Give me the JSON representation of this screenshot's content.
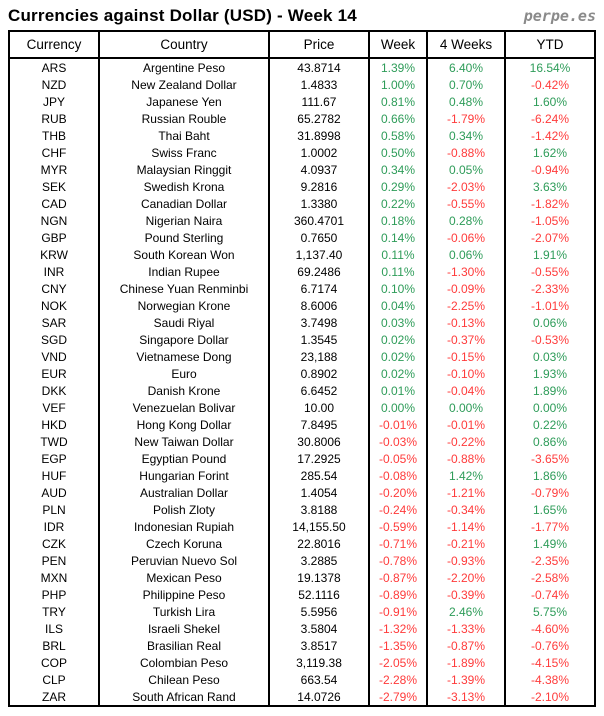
{
  "header": {
    "title": "Currencies against Dollar (USD) - Week 14",
    "logo": "perpe.es"
  },
  "colors": {
    "positive": "#2E9C59",
    "negative": "#FF3B3B",
    "text": "#000000",
    "logo_gray": "#8A8A8A",
    "border": "#000000"
  },
  "table": {
    "columns": [
      {
        "key": "code",
        "label": "Currency"
      },
      {
        "key": "country",
        "label": "Country"
      },
      {
        "key": "price",
        "label": "Price"
      },
      {
        "key": "week",
        "label": "Week"
      },
      {
        "key": "weeks4",
        "label": "4 Weeks"
      },
      {
        "key": "ytd",
        "label": "YTD"
      }
    ],
    "percent_columns": [
      "week",
      "weeks4",
      "ytd"
    ],
    "rows": [
      {
        "code": "ARS",
        "country": "Argentine Peso",
        "price": "43.8714",
        "week": "1.39%",
        "weeks4": "6.40%",
        "ytd": "16.54%"
      },
      {
        "code": "NZD",
        "country": "New Zealand Dollar",
        "price": "1.4833",
        "week": "1.00%",
        "weeks4": "0.70%",
        "ytd": "-0.42%"
      },
      {
        "code": "JPY",
        "country": "Japanese Yen",
        "price": "111.67",
        "week": "0.81%",
        "weeks4": "0.48%",
        "ytd": "1.60%"
      },
      {
        "code": "RUB",
        "country": "Russian Rouble",
        "price": "65.2782",
        "week": "0.66%",
        "weeks4": "-1.79%",
        "ytd": "-6.24%"
      },
      {
        "code": "THB",
        "country": "Thai Baht",
        "price": "31.8998",
        "week": "0.58%",
        "weeks4": "0.34%",
        "ytd": "-1.42%"
      },
      {
        "code": "CHF",
        "country": "Swiss Franc",
        "price": "1.0002",
        "week": "0.50%",
        "weeks4": "-0.88%",
        "ytd": "1.62%"
      },
      {
        "code": "MYR",
        "country": "Malaysian Ringgit",
        "price": "4.0937",
        "week": "0.34%",
        "weeks4": "0.05%",
        "ytd": "-0.94%"
      },
      {
        "code": "SEK",
        "country": "Swedish Krona",
        "price": "9.2816",
        "week": "0.29%",
        "weeks4": "-2.03%",
        "ytd": "3.63%"
      },
      {
        "code": "CAD",
        "country": "Canadian Dollar",
        "price": "1.3380",
        "week": "0.22%",
        "weeks4": "-0.55%",
        "ytd": "-1.82%"
      },
      {
        "code": "NGN",
        "country": "Nigerian Naira",
        "price": "360.4701",
        "week": "0.18%",
        "weeks4": "0.28%",
        "ytd": "-1.05%"
      },
      {
        "code": "GBP",
        "country": "Pound Sterling",
        "price": "0.7650",
        "week": "0.14%",
        "weeks4": "-0.06%",
        "ytd": "-2.07%"
      },
      {
        "code": "KRW",
        "country": "South Korean Won",
        "price": "1,137.40",
        "week": "0.11%",
        "weeks4": "0.06%",
        "ytd": "1.91%"
      },
      {
        "code": "INR",
        "country": "Indian Rupee",
        "price": "69.2486",
        "week": "0.11%",
        "weeks4": "-1.30%",
        "ytd": "-0.55%"
      },
      {
        "code": "CNY",
        "country": "Chinese Yuan Renminbi",
        "price": "6.7174",
        "week": "0.10%",
        "weeks4": "-0.09%",
        "ytd": "-2.33%"
      },
      {
        "code": "NOK",
        "country": "Norwegian Krone",
        "price": "8.6006",
        "week": "0.04%",
        "weeks4": "-2.25%",
        "ytd": "-1.01%"
      },
      {
        "code": "SAR",
        "country": "Saudi Riyal",
        "price": "3.7498",
        "week": "0.03%",
        "weeks4": "-0.13%",
        "ytd": "0.06%"
      },
      {
        "code": "SGD",
        "country": "Singapore Dollar",
        "price": "1.3545",
        "week": "0.02%",
        "weeks4": "-0.37%",
        "ytd": "-0.53%"
      },
      {
        "code": "VND",
        "country": "Vietnamese Dong",
        "price": "23,188",
        "week": "0.02%",
        "weeks4": "-0.15%",
        "ytd": "0.03%"
      },
      {
        "code": "EUR",
        "country": "Euro",
        "price": "0.8902",
        "week": "0.02%",
        "weeks4": "-0.10%",
        "ytd": "1.93%"
      },
      {
        "code": "DKK",
        "country": "Danish Krone",
        "price": "6.6452",
        "week": "0.01%",
        "weeks4": "-0.04%",
        "ytd": "1.89%"
      },
      {
        "code": "VEF",
        "country": "Venezuelan Bolivar",
        "price": "10.00",
        "week": "0.00%",
        "weeks4": "0.00%",
        "ytd": "0.00%"
      },
      {
        "code": "HKD",
        "country": "Hong Kong Dollar",
        "price": "7.8495",
        "week": "-0.01%",
        "weeks4": "-0.01%",
        "ytd": "0.22%"
      },
      {
        "code": "TWD",
        "country": "New Taiwan Dollar",
        "price": "30.8006",
        "week": "-0.03%",
        "weeks4": "-0.22%",
        "ytd": "0.86%"
      },
      {
        "code": "EGP",
        "country": "Egyptian Pound",
        "price": "17.2925",
        "week": "-0.05%",
        "weeks4": "-0.88%",
        "ytd": "-3.65%"
      },
      {
        "code": "HUF",
        "country": "Hungarian Forint",
        "price": "285.54",
        "week": "-0.08%",
        "weeks4": "1.42%",
        "ytd": "1.86%"
      },
      {
        "code": "AUD",
        "country": "Australian Dollar",
        "price": "1.4054",
        "week": "-0.20%",
        "weeks4": "-1.21%",
        "ytd": "-0.79%"
      },
      {
        "code": "PLN",
        "country": "Polish Zloty",
        "price": "3.8188",
        "week": "-0.24%",
        "weeks4": "-0.34%",
        "ytd": "1.65%"
      },
      {
        "code": "IDR",
        "country": "Indonesian Rupiah",
        "price": "14,155.50",
        "week": "-0.59%",
        "weeks4": "-1.14%",
        "ytd": "-1.77%"
      },
      {
        "code": "CZK",
        "country": "Czech Koruna",
        "price": "22.8016",
        "week": "-0.71%",
        "weeks4": "-0.21%",
        "ytd": "1.49%"
      },
      {
        "code": "PEN",
        "country": "Peruvian Nuevo Sol",
        "price": "3.2885",
        "week": "-0.78%",
        "weeks4": "-0.93%",
        "ytd": "-2.35%"
      },
      {
        "code": "MXN",
        "country": "Mexican Peso",
        "price": "19.1378",
        "week": "-0.87%",
        "weeks4": "-2.20%",
        "ytd": "-2.58%"
      },
      {
        "code": "PHP",
        "country": "Philippine Peso",
        "price": "52.1116",
        "week": "-0.89%",
        "weeks4": "-0.39%",
        "ytd": "-0.74%"
      },
      {
        "code": "TRY",
        "country": "Turkish Lira",
        "price": "5.5956",
        "week": "-0.91%",
        "weeks4": "2.46%",
        "ytd": "5.75%"
      },
      {
        "code": "ILS",
        "country": "Israeli Shekel",
        "price": "3.5804",
        "week": "-1.32%",
        "weeks4": "-1.33%",
        "ytd": "-4.60%"
      },
      {
        "code": "BRL",
        "country": "Brasilian Real",
        "price": "3.8517",
        "week": "-1.35%",
        "weeks4": "-0.87%",
        "ytd": "-0.76%"
      },
      {
        "code": "COP",
        "country": "Colombian Peso",
        "price": "3,119.38",
        "week": "-2.05%",
        "weeks4": "-1.89%",
        "ytd": "-4.15%"
      },
      {
        "code": "CLP",
        "country": "Chilean Peso",
        "price": "663.54",
        "week": "-2.28%",
        "weeks4": "-1.39%",
        "ytd": "-4.38%"
      },
      {
        "code": "ZAR",
        "country": "South African Rand",
        "price": "14.0726",
        "week": "-2.79%",
        "weeks4": "-3.13%",
        "ytd": "-2.10%"
      }
    ]
  }
}
